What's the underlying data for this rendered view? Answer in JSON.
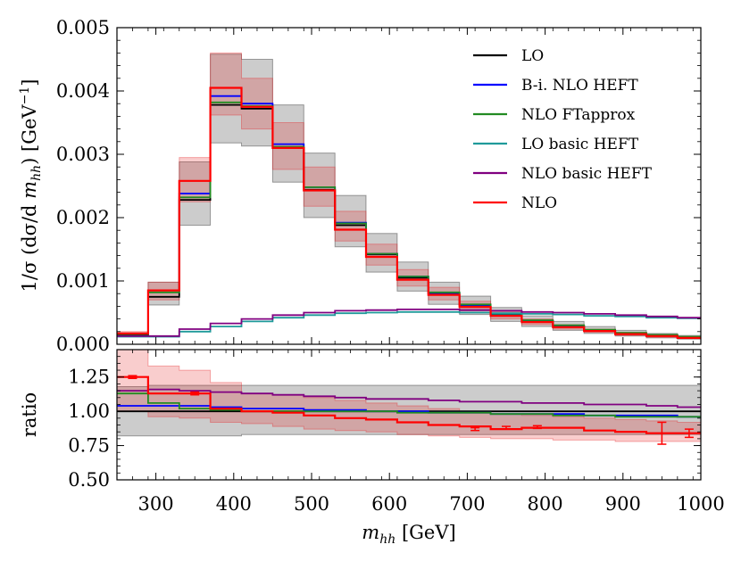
{
  "chart_data": {
    "type": "line",
    "bin_edges": [
      250,
      290,
      330,
      370,
      410,
      450,
      490,
      530,
      570,
      610,
      650,
      690,
      730,
      770,
      810,
      850,
      890,
      930,
      970,
      1000
    ],
    "top_panel": {
      "ylabel": "1/σ (dσ/d m_hh) [GeV^-1]",
      "ylim": [
        0,
        0.005
      ],
      "yticks": [
        "0.000",
        "0.001",
        "0.002",
        "0.003",
        "0.004",
        "0.005"
      ],
      "bands": [
        {
          "series": "LO",
          "color": "#000000",
          "lower": [
            0.00012,
            0.00062,
            0.00188,
            0.00318,
            0.00313,
            0.00256,
            0.002,
            0.00154,
            0.00114,
            0.00084,
            0.00063,
            0.00047,
            0.00036,
            0.00028,
            0.00022,
            0.00017,
            0.00013,
            0.0001,
            8e-05
          ],
          "upper": [
            0.00018,
            0.00098,
            0.00288,
            0.00458,
            0.0045,
            0.00378,
            0.00302,
            0.00235,
            0.00175,
            0.0013,
            0.00098,
            0.00076,
            0.00058,
            0.00045,
            0.00036,
            0.00028,
            0.00022,
            0.00017,
            0.00014
          ]
        },
        {
          "series": "NLO",
          "color": "#e41a1c",
          "lower": [
            0.00012,
            0.0007,
            0.00225,
            0.00362,
            0.0034,
            0.00276,
            0.00218,
            0.00163,
            0.00125,
            0.00092,
            0.0007,
            0.00053,
            0.0004,
            0.00031,
            0.00024,
            0.00019,
            0.00014,
            0.00011,
            9e-05
          ],
          "upper": [
            0.0002,
            0.00098,
            0.00295,
            0.0046,
            0.0042,
            0.0035,
            0.0028,
            0.0021,
            0.00158,
            0.00118,
            0.0009,
            0.00068,
            0.00052,
            0.0004,
            0.00031,
            0.00024,
            0.00019,
            0.00015,
            0.00012
          ]
        }
      ],
      "series": [
        {
          "name": "LO",
          "color": "#000000",
          "values": [
            0.00015,
            0.00075,
            0.00228,
            0.00378,
            0.00372,
            0.0031,
            0.00244,
            0.00188,
            0.00142,
            0.00105,
            0.0008,
            0.00062,
            0.00047,
            0.00037,
            0.00029,
            0.00022,
            0.00017,
            0.00014,
            0.00011
          ]
        },
        {
          "name": "B-i. NLO HEFT",
          "color": "#0000ff",
          "values": [
            0.00016,
            0.00085,
            0.00238,
            0.00392,
            0.0038,
            0.00316,
            0.00248,
            0.00192,
            0.00143,
            0.00107,
            0.00081,
            0.00062,
            0.00047,
            0.00037,
            0.00029,
            0.00022,
            0.00017,
            0.00014,
            0.00011
          ]
        },
        {
          "name": "NLO FTapprox",
          "color": "#228b22",
          "values": [
            0.00016,
            0.00082,
            0.00232,
            0.00382,
            0.00376,
            0.00312,
            0.00248,
            0.00191,
            0.00143,
            0.00107,
            0.00082,
            0.00063,
            0.00048,
            0.00038,
            0.0003,
            0.00023,
            0.00018,
            0.00015,
            0.00012
          ]
        },
        {
          "name": "LO basic HEFT",
          "color": "#1f9a9a",
          "values": [
            0.00012,
            0.00012,
            0.0002,
            0.00028,
            0.00036,
            0.00042,
            0.00046,
            0.00049,
            0.0005,
            0.00051,
            0.00051,
            0.0005,
            0.00049,
            0.00048,
            0.00047,
            0.00045,
            0.00044,
            0.00042,
            0.00041
          ]
        },
        {
          "name": "NLO basic HEFT",
          "color": "#800080",
          "values": [
            0.00013,
            0.00013,
            0.00024,
            0.00033,
            0.0004,
            0.00046,
            0.0005,
            0.00053,
            0.00054,
            0.00055,
            0.00055,
            0.00054,
            0.00053,
            0.00051,
            0.0005,
            0.00048,
            0.00046,
            0.00044,
            0.00042
          ]
        },
        {
          "name": "NLO",
          "color": "#ff0000",
          "values": [
            0.00017,
            0.00085,
            0.00258,
            0.00405,
            0.00375,
            0.0031,
            0.00243,
            0.00181,
            0.00138,
            0.00102,
            0.00078,
            0.00059,
            0.00045,
            0.00035,
            0.00027,
            0.00021,
            0.00016,
            0.00013,
            0.0001
          ]
        }
      ],
      "legend": {
        "placement": "top-right",
        "entries": [
          {
            "label": "LO",
            "color": "#000000"
          },
          {
            "label": "B-i. NLO HEFT",
            "color": "#0000ff"
          },
          {
            "label": "NLO FTapprox",
            "color": "#228b22"
          },
          {
            "label": "LO basic HEFT",
            "color": "#1f9a9a"
          },
          {
            "label": "NLO basic HEFT",
            "color": "#800080"
          },
          {
            "label": "NLO",
            "color": "#ff0000"
          }
        ]
      }
    },
    "ratio_panel": {
      "ylabel": "ratio",
      "ylim": [
        0.5,
        1.45
      ],
      "yticks": [
        "0.50",
        "0.75",
        "1.00",
        "1.25"
      ],
      "bands": [
        {
          "series": "LO",
          "color": "#000000",
          "lower": [
            0.82,
            0.82,
            0.82,
            0.82,
            0.83,
            0.83,
            0.83,
            0.83,
            0.83,
            0.83,
            0.83,
            0.83,
            0.83,
            0.83,
            0.83,
            0.83,
            0.83,
            0.83,
            0.83
          ],
          "upper": [
            1.18,
            1.19,
            1.19,
            1.19,
            1.19,
            1.19,
            1.19,
            1.19,
            1.19,
            1.19,
            1.19,
            1.19,
            1.19,
            1.19,
            1.19,
            1.19,
            1.19,
            1.19,
            1.19
          ]
        },
        {
          "series": "NLO",
          "color": "#e41a1c",
          "lower": [
            1.0,
            0.96,
            0.95,
            0.92,
            0.91,
            0.89,
            0.87,
            0.86,
            0.85,
            0.83,
            0.82,
            0.81,
            0.8,
            0.8,
            0.79,
            0.79,
            0.78,
            0.78,
            0.78
          ],
          "upper": [
            1.45,
            1.33,
            1.3,
            1.21,
            1.13,
            1.12,
            1.1,
            1.08,
            1.06,
            1.04,
            1.02,
            1.0,
            0.98,
            0.97,
            0.96,
            0.95,
            0.94,
            0.93,
            0.92
          ]
        }
      ],
      "series": [
        {
          "name": "LO",
          "color": "#000000",
          "values": [
            1.0,
            1.0,
            1.0,
            1.0,
            1.0,
            1.0,
            1.0,
            1.0,
            1.0,
            1.0,
            1.0,
            1.0,
            1.0,
            1.0,
            1.0,
            1.0,
            1.0,
            1.0,
            1.0
          ]
        },
        {
          "name": "B-i. NLO HEFT",
          "color": "#0000ff",
          "values": [
            1.04,
            1.04,
            1.04,
            1.03,
            1.02,
            1.02,
            1.01,
            1.01,
            1.0,
            1.0,
            0.99,
            0.99,
            0.98,
            0.98,
            0.98,
            0.97,
            0.97,
            0.97,
            0.96
          ]
        },
        {
          "name": "NLO FTapprox",
          "color": "#228b22",
          "values": [
            1.13,
            1.06,
            1.02,
            1.01,
            1.0,
            1.0,
            1.0,
            1.0,
            1.0,
            0.99,
            0.99,
            0.99,
            0.98,
            0.98,
            0.97,
            0.97,
            0.96,
            0.96,
            0.96
          ]
        },
        {
          "name": "NLO basic HEFT",
          "color": "#800080",
          "values": [
            1.15,
            1.16,
            1.15,
            1.14,
            1.13,
            1.12,
            1.11,
            1.1,
            1.09,
            1.09,
            1.08,
            1.07,
            1.07,
            1.06,
            1.06,
            1.05,
            1.05,
            1.04,
            1.03
          ]
        },
        {
          "name": "NLO",
          "color": "#ff0000",
          "values": [
            1.25,
            1.13,
            1.13,
            1.02,
            1.0,
            0.99,
            0.97,
            0.95,
            0.94,
            0.92,
            0.9,
            0.89,
            0.87,
            0.88,
            0.88,
            0.86,
            0.85,
            0.84,
            0.84
          ]
        }
      ],
      "error_bars": [
        {
          "x": 270,
          "y": 1.25,
          "err": 0.01
        },
        {
          "x": 350,
          "y": 1.13,
          "err": 0.01
        },
        {
          "x": 710,
          "y": 0.87,
          "err": 0.01
        },
        {
          "x": 750,
          "y": 0.88,
          "err": 0.01
        },
        {
          "x": 790,
          "y": 0.885,
          "err": 0.01
        },
        {
          "x": 950,
          "y": 0.84,
          "err": 0.08
        },
        {
          "x": 985,
          "y": 0.84,
          "err": 0.03
        }
      ]
    },
    "xaxis": {
      "xlabel": "m_hh [GeV]",
      "xlim": [
        250,
        1000
      ],
      "xticks": [
        "300",
        "400",
        "500",
        "600",
        "700",
        "800",
        "900",
        "1000"
      ],
      "minor_step": 20
    }
  }
}
